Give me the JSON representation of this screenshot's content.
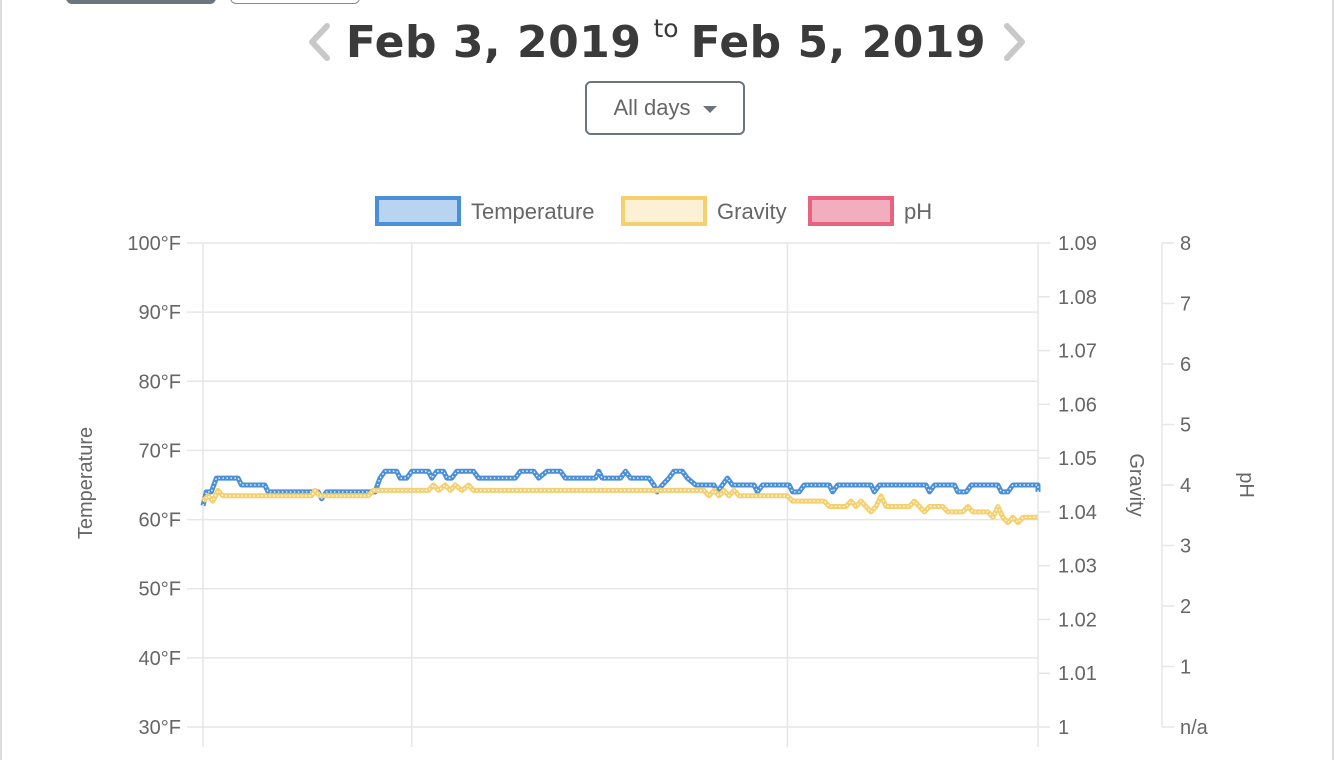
{
  "header": {
    "start_date": "Feb 3, 2019",
    "to_label": "to",
    "end_date": "Feb 5, 2019",
    "prev_icon": "chevron-left-icon",
    "next_icon": "chevron-right-icon"
  },
  "filter": {
    "selected": "All days",
    "icon": "caret-down-icon"
  },
  "colors": {
    "temperature": "#4a90d9",
    "temperature_fill": "#b8d4f0",
    "gravity": "#f5d06f",
    "gravity_fill": "#fcf1d4",
    "ph": "#e8637f",
    "ph_fill": "#f2aebf",
    "grid": "#e6e6e6",
    "text": "#666666"
  },
  "chart_data": {
    "type": "line",
    "legend_position": "top",
    "grid": true,
    "axes": {
      "temperature": {
        "label": "Temperature",
        "range": [
          30,
          100
        ],
        "ticks": [
          "100°F",
          "90°F",
          "80°F",
          "70°F",
          "60°F",
          "50°F",
          "40°F",
          "30°F"
        ],
        "position": "left"
      },
      "gravity": {
        "label": "Gravity",
        "range": [
          1.0,
          1.09
        ],
        "ticks": [
          "1.09",
          "1.08",
          "1.07",
          "1.06",
          "1.05",
          "1.04",
          "1.03",
          "1.02",
          "1.01",
          "1"
        ],
        "position": "right"
      },
      "ph": {
        "label": "pH",
        "range": [
          0,
          8
        ],
        "ticks": [
          "8",
          "7",
          "6",
          "5",
          "4",
          "3",
          "2",
          "1",
          "n/a"
        ],
        "position": "right"
      }
    },
    "x": {
      "range": [
        0,
        1
      ],
      "vertical_grid_at": [
        0.25,
        0.7
      ]
    },
    "series": [
      {
        "name": "Temperature",
        "axis": "temperature",
        "points": [
          [
            0,
            62
          ],
          [
            0.004,
            64
          ],
          [
            0.01,
            64
          ],
          [
            0.016,
            66
          ],
          [
            0.042,
            66
          ],
          [
            0.046,
            65
          ],
          [
            0.074,
            65
          ],
          [
            0.078,
            64
          ],
          [
            0.138,
            64
          ],
          [
            0.142,
            63
          ],
          [
            0.148,
            64
          ],
          [
            0.206,
            64
          ],
          [
            0.212,
            66
          ],
          [
            0.218,
            67
          ],
          [
            0.232,
            67
          ],
          [
            0.236,
            66
          ],
          [
            0.244,
            66
          ],
          [
            0.25,
            67
          ],
          [
            0.27,
            67
          ],
          [
            0.274,
            66
          ],
          [
            0.28,
            67
          ],
          [
            0.288,
            67
          ],
          [
            0.292,
            66
          ],
          [
            0.298,
            66
          ],
          [
            0.304,
            67
          ],
          [
            0.324,
            67
          ],
          [
            0.33,
            66
          ],
          [
            0.374,
            66
          ],
          [
            0.38,
            67
          ],
          [
            0.396,
            67
          ],
          [
            0.402,
            66
          ],
          [
            0.412,
            67
          ],
          [
            0.428,
            67
          ],
          [
            0.434,
            66
          ],
          [
            0.47,
            66
          ],
          [
            0.474,
            67
          ],
          [
            0.478,
            66
          ],
          [
            0.5,
            66
          ],
          [
            0.506,
            67
          ],
          [
            0.512,
            66
          ],
          [
            0.534,
            66
          ],
          [
            0.54,
            65
          ],
          [
            0.544,
            64
          ],
          [
            0.55,
            65
          ],
          [
            0.558,
            66
          ],
          [
            0.564,
            67
          ],
          [
            0.574,
            67
          ],
          [
            0.58,
            66
          ],
          [
            0.59,
            65
          ],
          [
            0.612,
            65
          ],
          [
            0.616,
            64
          ],
          [
            0.622,
            65
          ],
          [
            0.628,
            66
          ],
          [
            0.634,
            65
          ],
          [
            0.66,
            65
          ],
          [
            0.664,
            64
          ],
          [
            0.67,
            65
          ],
          [
            0.702,
            65
          ],
          [
            0.706,
            64
          ],
          [
            0.714,
            64
          ],
          [
            0.72,
            65
          ],
          [
            0.75,
            65
          ],
          [
            0.754,
            64
          ],
          [
            0.76,
            65
          ],
          [
            0.8,
            65
          ],
          [
            0.804,
            64
          ],
          [
            0.81,
            65
          ],
          [
            0.866,
            65
          ],
          [
            0.87,
            64
          ],
          [
            0.876,
            65
          ],
          [
            0.9,
            65
          ],
          [
            0.904,
            64
          ],
          [
            0.914,
            64
          ],
          [
            0.92,
            65
          ],
          [
            0.952,
            65
          ],
          [
            0.956,
            64
          ],
          [
            0.964,
            64
          ],
          [
            0.97,
            65
          ],
          [
            1.0,
            65
          ],
          [
            1.0,
            64
          ]
        ]
      },
      {
        "name": "Gravity",
        "axis": "gravity",
        "points": [
          [
            0,
            1.042
          ],
          [
            0.006,
            1.043
          ],
          [
            0.012,
            1.042
          ],
          [
            0.018,
            1.044
          ],
          [
            0.024,
            1.043
          ],
          [
            0.13,
            1.043
          ],
          [
            0.134,
            1.044
          ],
          [
            0.14,
            1.043
          ],
          [
            0.198,
            1.043
          ],
          [
            0.204,
            1.044
          ],
          [
            0.27,
            1.044
          ],
          [
            0.276,
            1.045
          ],
          [
            0.282,
            1.044
          ],
          [
            0.29,
            1.045
          ],
          [
            0.296,
            1.044
          ],
          [
            0.302,
            1.045
          ],
          [
            0.31,
            1.044
          ],
          [
            0.318,
            1.045
          ],
          [
            0.324,
            1.044
          ],
          [
            0.6,
            1.044
          ],
          [
            0.606,
            1.043
          ],
          [
            0.612,
            1.044
          ],
          [
            0.618,
            1.043
          ],
          [
            0.624,
            1.044
          ],
          [
            0.63,
            1.043
          ],
          [
            0.636,
            1.044
          ],
          [
            0.642,
            1.043
          ],
          [
            0.7,
            1.043
          ],
          [
            0.706,
            1.042
          ],
          [
            0.744,
            1.042
          ],
          [
            0.75,
            1.041
          ],
          [
            0.77,
            1.041
          ],
          [
            0.776,
            1.042
          ],
          [
            0.782,
            1.041
          ],
          [
            0.788,
            1.042
          ],
          [
            0.794,
            1.041
          ],
          [
            0.8,
            1.04
          ],
          [
            0.806,
            1.041
          ],
          [
            0.812,
            1.043
          ],
          [
            0.818,
            1.041
          ],
          [
            0.846,
            1.041
          ],
          [
            0.852,
            1.042
          ],
          [
            0.858,
            1.041
          ],
          [
            0.864,
            1.04
          ],
          [
            0.87,
            1.041
          ],
          [
            0.886,
            1.041
          ],
          [
            0.892,
            1.04
          ],
          [
            0.91,
            1.04
          ],
          [
            0.916,
            1.041
          ],
          [
            0.922,
            1.04
          ],
          [
            0.94,
            1.04
          ],
          [
            0.946,
            1.039
          ],
          [
            0.952,
            1.041
          ],
          [
            0.958,
            1.039
          ],
          [
            0.964,
            1.038
          ],
          [
            0.97,
            1.039
          ],
          [
            0.976,
            1.038
          ],
          [
            0.982,
            1.039
          ],
          [
            1.0,
            1.039
          ]
        ]
      },
      {
        "name": "pH",
        "axis": "ph",
        "points": []
      }
    ]
  }
}
